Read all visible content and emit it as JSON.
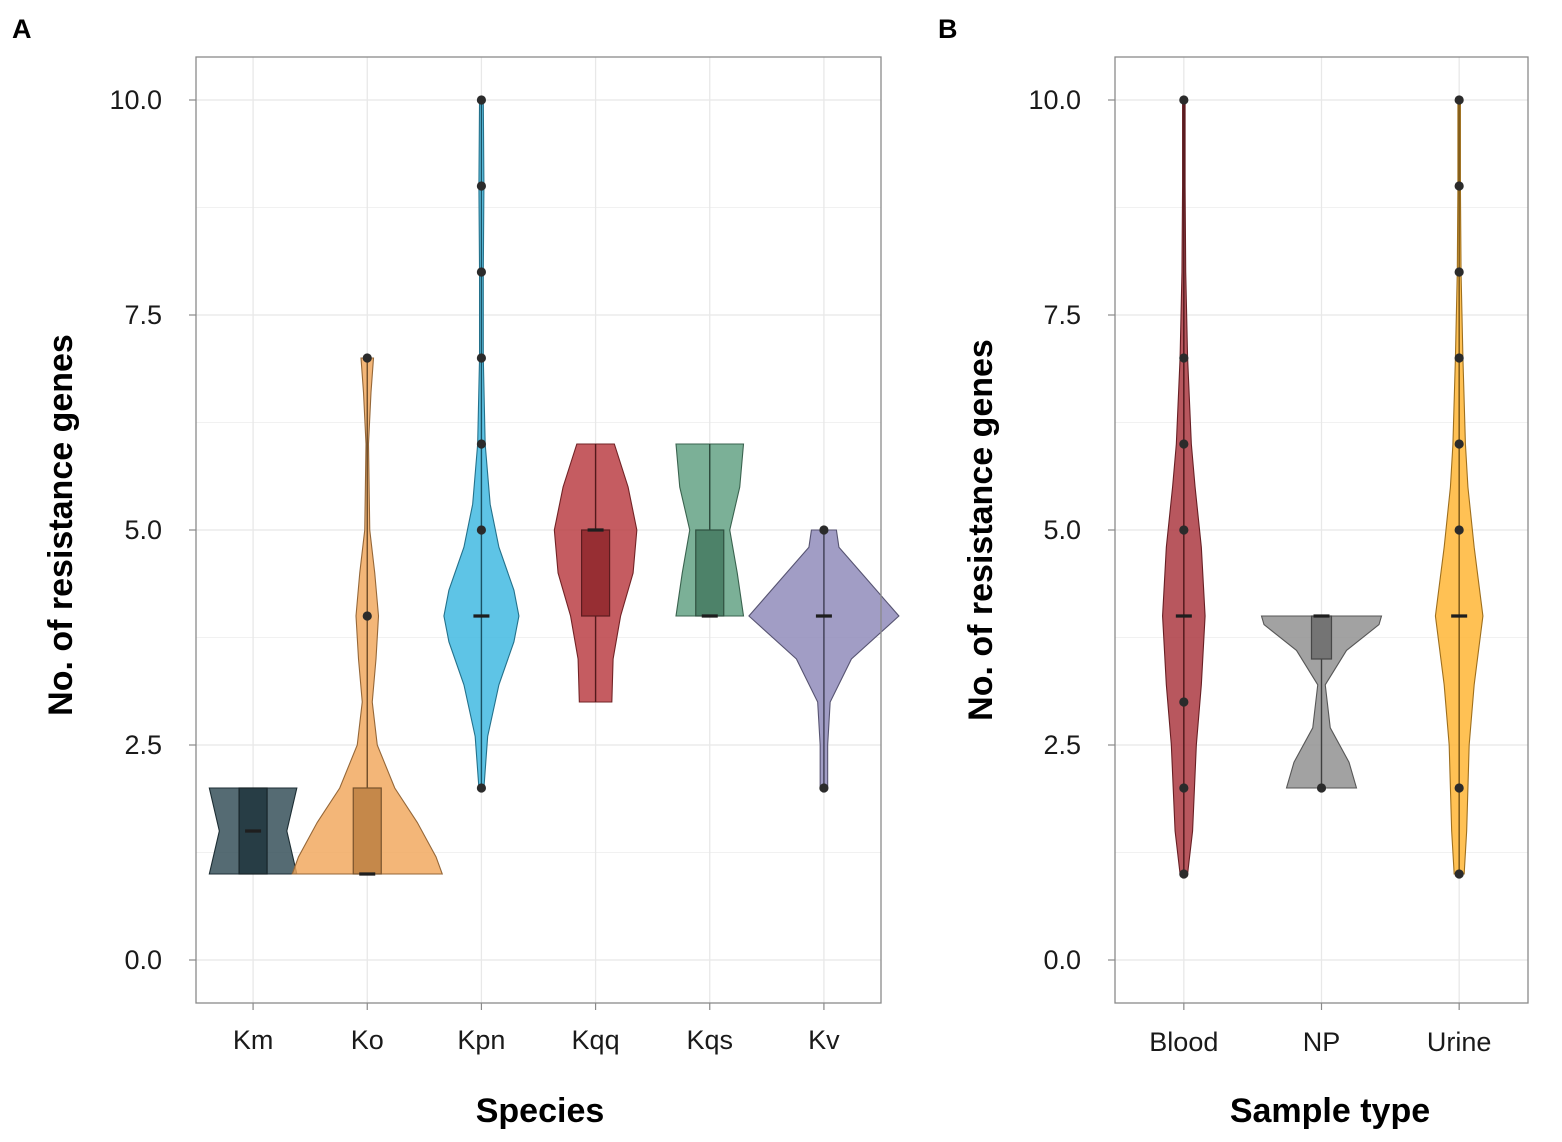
{
  "chart_data": [
    {
      "type": "violin",
      "panel": "A",
      "xlabel": "Species",
      "ylabel": "No. of resistance genes",
      "ylim": [
        -0.5,
        10.5
      ],
      "yticks": [
        0.0,
        2.5,
        5.0,
        7.5,
        10.0
      ],
      "ytick_labels": [
        "0.0",
        "2.5",
        "5.0",
        "7.5",
        "10.0"
      ],
      "categories": [
        "Km",
        "Ko",
        "Kpn",
        "Kqq",
        "Kqs",
        "Kv"
      ],
      "groups": [
        {
          "name": "Km",
          "color": "#2f4a54",
          "box": {
            "q1": 1.0,
            "median": 1.5,
            "q3": 2.0
          },
          "violin": [
            [
              1.0,
              0.35
            ],
            [
              1.5,
              0.27
            ],
            [
              2.0,
              0.35
            ]
          ],
          "outliers": []
        },
        {
          "name": "Ko",
          "color": "#f0a65a",
          "box": {
            "q1": 1.0,
            "median": 1.0,
            "q3": 2.0
          },
          "violin": [
            [
              1.0,
              0.6
            ],
            [
              1.2,
              0.55
            ],
            [
              1.6,
              0.4
            ],
            [
              2.0,
              0.22
            ],
            [
              2.5,
              0.08
            ],
            [
              3.0,
              0.04
            ],
            [
              3.5,
              0.07
            ],
            [
              4.0,
              0.09
            ],
            [
              4.5,
              0.06
            ],
            [
              5.0,
              0.02
            ],
            [
              6.0,
              0.01
            ],
            [
              6.6,
              0.03
            ],
            [
              7.0,
              0.05
            ]
          ],
          "outliers": [
            4.0,
            7.0
          ]
        },
        {
          "name": "Kpn",
          "color": "#3ab7e0",
          "box": {
            "q1": 4.0,
            "median": 4.0,
            "q3": 4.0
          },
          "violin": [
            [
              2.0,
              0.02
            ],
            [
              2.6,
              0.05
            ],
            [
              3.2,
              0.14
            ],
            [
              3.7,
              0.26
            ],
            [
              4.0,
              0.3
            ],
            [
              4.3,
              0.26
            ],
            [
              4.8,
              0.14
            ],
            [
              5.3,
              0.07
            ],
            [
              6.0,
              0.03
            ],
            [
              7.0,
              0.015
            ],
            [
              8.0,
              0.015
            ],
            [
              9.0,
              0.02
            ],
            [
              10.0,
              0.015
            ]
          ],
          "outliers": [
            2.0,
            5.0,
            6.0,
            7.0,
            8.0,
            9.0,
            10.0
          ]
        },
        {
          "name": "Kqq",
          "color": "#b8383e",
          "box": {
            "q1": 4.0,
            "median": 5.0,
            "q3": 5.0
          },
          "violin": [
            [
              3.0,
              0.13
            ],
            [
              3.5,
              0.14
            ],
            [
              4.0,
              0.2
            ],
            [
              4.5,
              0.3
            ],
            [
              5.0,
              0.33
            ],
            [
              5.5,
              0.26
            ],
            [
              6.0,
              0.15
            ]
          ],
          "outliers": []
        },
        {
          "name": "Kqs",
          "color": "#5e9f80",
          "box": {
            "q1": 4.0,
            "median": 4.0,
            "q3": 5.0
          },
          "violin": [
            [
              4.0,
              0.27
            ],
            [
              4.5,
              0.22
            ],
            [
              5.0,
              0.16
            ],
            [
              5.5,
              0.24
            ],
            [
              6.0,
              0.27
            ]
          ],
          "outliers": []
        },
        {
          "name": "Kv",
          "color": "#8c87b8",
          "box": {
            "q1": 4.0,
            "median": 4.0,
            "q3": 4.0
          },
          "violin": [
            [
              2.0,
              0.03
            ],
            [
              2.5,
              0.03
            ],
            [
              3.0,
              0.05
            ],
            [
              3.5,
              0.22
            ],
            [
              4.0,
              0.6
            ],
            [
              4.5,
              0.3
            ],
            [
              4.8,
              0.12
            ],
            [
              5.0,
              0.1
            ]
          ],
          "outliers": [
            2.0,
            5.0
          ]
        }
      ]
    },
    {
      "type": "violin",
      "panel": "B",
      "xlabel": "Sample type",
      "ylabel": "No. of resistance genes",
      "ylim": [
        -0.5,
        10.5
      ],
      "yticks": [
        0.0,
        2.5,
        5.0,
        7.5,
        10.0
      ],
      "ytick_labels": [
        "0.0",
        "2.5",
        "5.0",
        "7.5",
        "10.0"
      ],
      "categories": [
        "Blood",
        "NP",
        "Urine"
      ],
      "groups": [
        {
          "name": "Blood",
          "color": "#a8323a",
          "box": {
            "q1": 4.0,
            "median": 4.0,
            "q3": 4.0
          },
          "violin": [
            [
              1.0,
              0.03
            ],
            [
              1.5,
              0.07
            ],
            [
              2.5,
              0.1
            ],
            [
              3.2,
              0.14
            ],
            [
              4.0,
              0.17
            ],
            [
              4.8,
              0.14
            ],
            [
              5.5,
              0.09
            ],
            [
              6.0,
              0.06
            ],
            [
              7.0,
              0.03
            ],
            [
              8.0,
              0.015
            ],
            [
              9.0,
              0.01
            ],
            [
              10.0,
              0.01
            ]
          ],
          "outliers": [
            1.0,
            2.0,
            3.0,
            5.0,
            6.0,
            7.0,
            10.0
          ]
        },
        {
          "name": "NP",
          "color": "#8d8d8d",
          "box": {
            "q1": 3.5,
            "median": 4.0,
            "q3": 4.0
          },
          "violin": [
            [
              2.0,
              0.28
            ],
            [
              2.3,
              0.22
            ],
            [
              2.7,
              0.07
            ],
            [
              3.2,
              0.03
            ],
            [
              3.6,
              0.2
            ],
            [
              3.9,
              0.46
            ],
            [
              4.0,
              0.48
            ]
          ],
          "outliers": [
            2.0
          ]
        },
        {
          "name": "Urine",
          "color": "#ffb32e",
          "box": {
            "q1": 4.0,
            "median": 4.0,
            "q3": 4.0
          },
          "violin": [
            [
              1.0,
              0.04
            ],
            [
              1.5,
              0.06
            ],
            [
              2.5,
              0.08
            ],
            [
              3.2,
              0.12
            ],
            [
              4.0,
              0.19
            ],
            [
              4.8,
              0.12
            ],
            [
              5.5,
              0.07
            ],
            [
              6.0,
              0.05
            ],
            [
              7.0,
              0.03
            ],
            [
              8.0,
              0.015
            ],
            [
              9.0,
              0.01
            ],
            [
              10.0,
              0.01
            ]
          ],
          "outliers": [
            1.0,
            2.0,
            5.0,
            6.0,
            7.0,
            8.0,
            9.0,
            10.0
          ]
        }
      ]
    }
  ]
}
